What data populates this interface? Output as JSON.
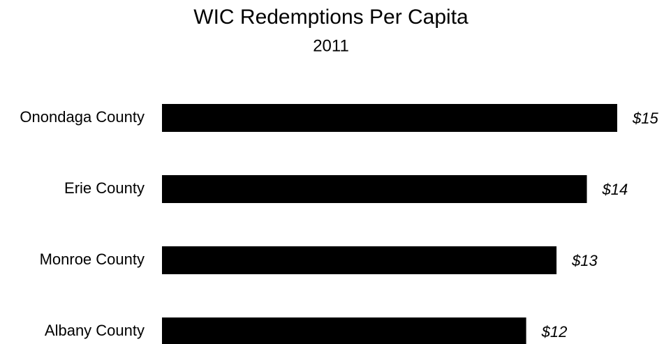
{
  "chart_data": {
    "type": "barh",
    "title": "WIC Redemptions Per Capita",
    "subtitle": "2011",
    "categories": [
      "Onondaga County",
      "Erie County",
      "Monroe County",
      "Albany County"
    ],
    "values": [
      15,
      14,
      13,
      12
    ],
    "value_labels": [
      "$15",
      "$14",
      "$13",
      "$12"
    ],
    "color": "#000000"
  }
}
